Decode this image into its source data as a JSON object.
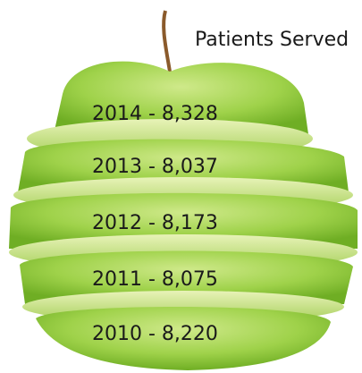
{
  "title": "Patients Served",
  "items": [
    "2014 - 8,328",
    "2013 - 8,037",
    "2012 - 8,173",
    "2011 - 8,075",
    "2010 - 8,220"
  ]
}
